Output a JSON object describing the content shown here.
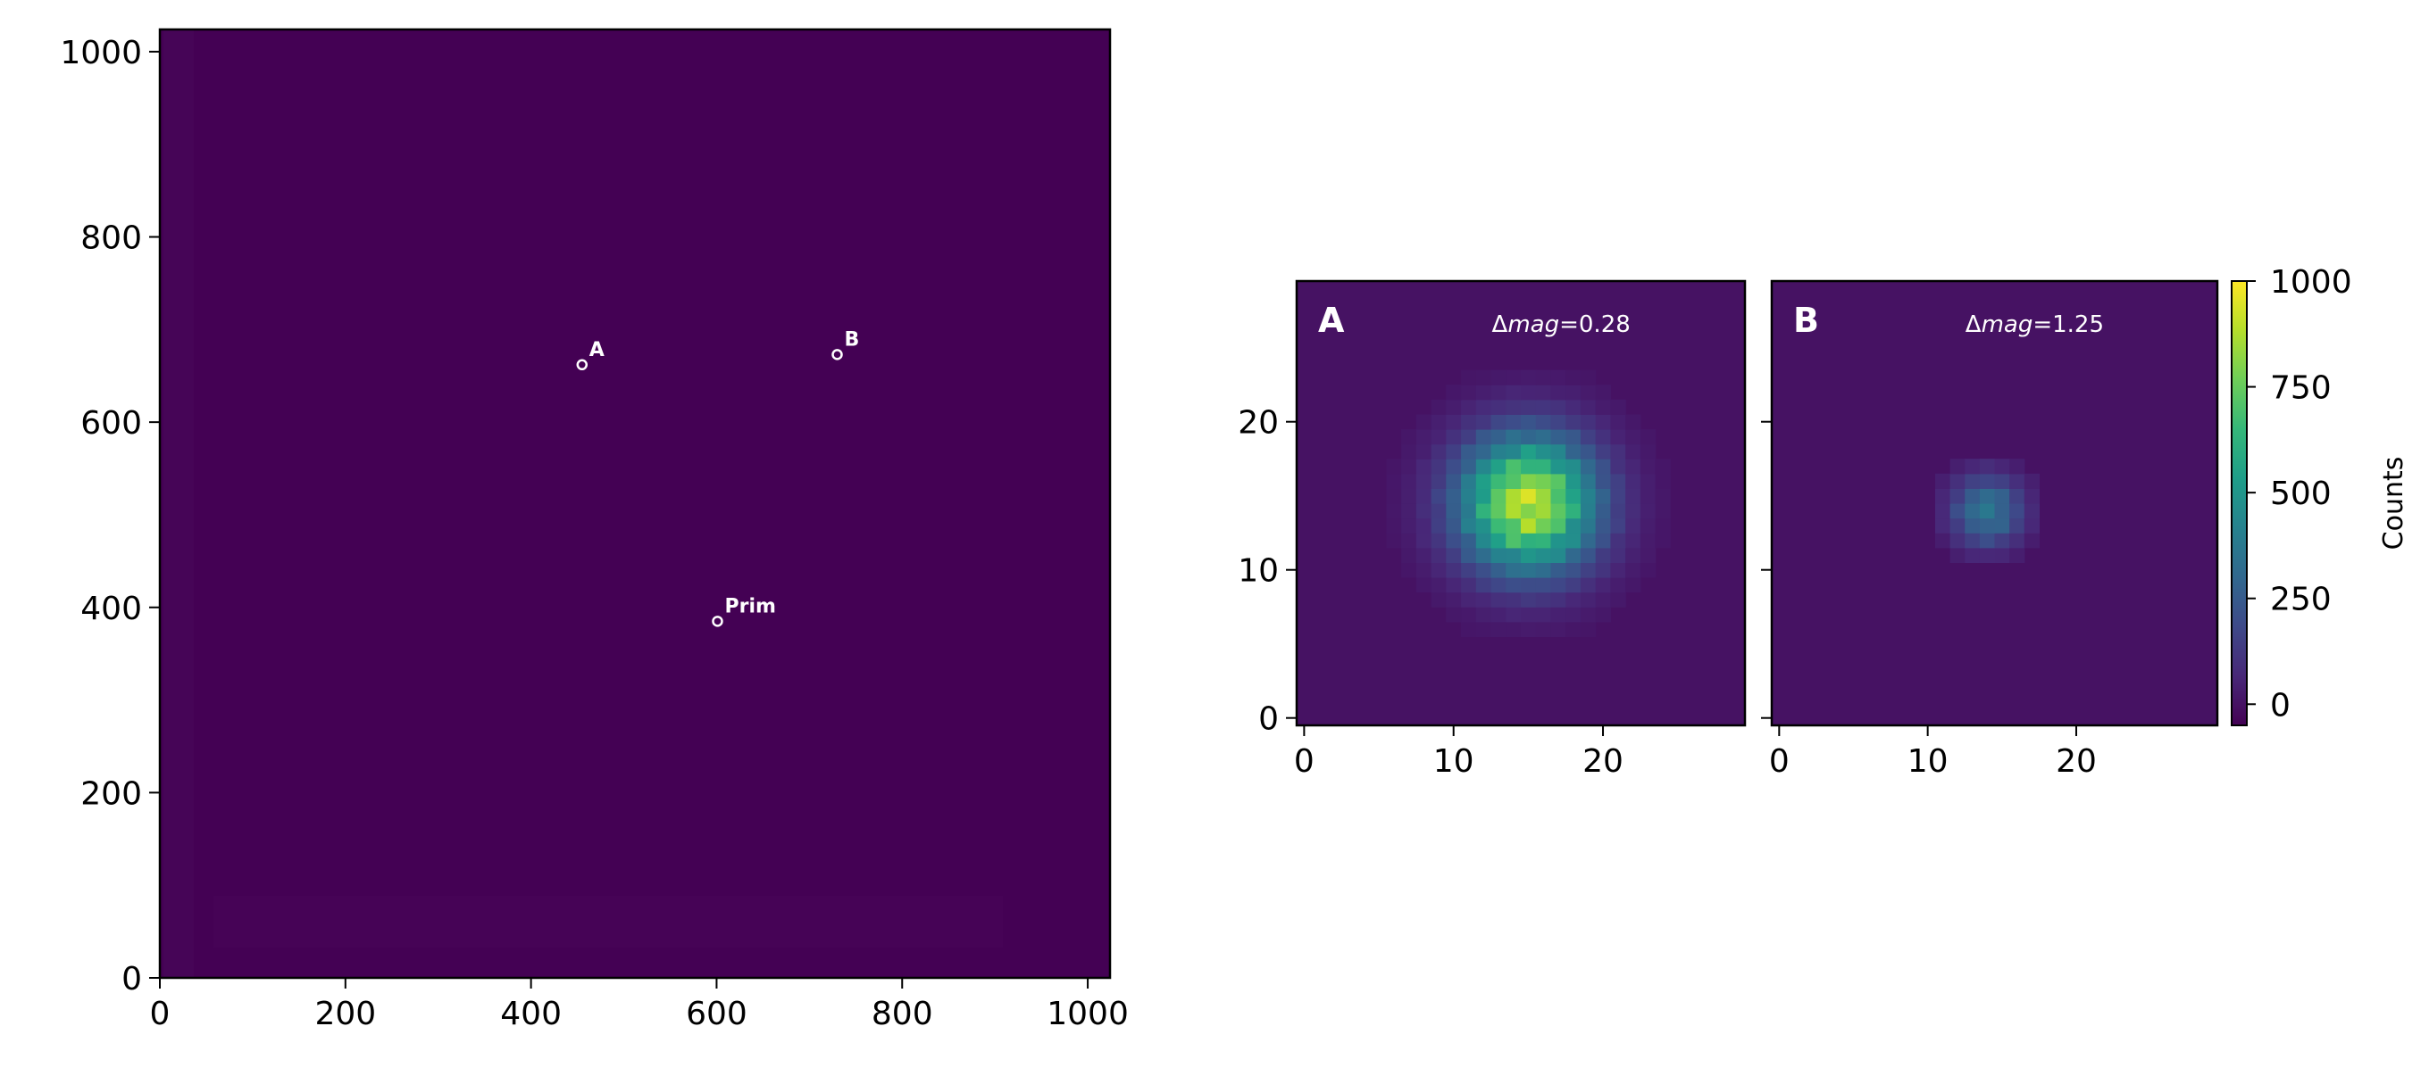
{
  "chart_data": [
    {
      "type": "heatmap",
      "id": "field",
      "title": "",
      "xlabel": "",
      "ylabel": "",
      "xlim": [
        0,
        1024
      ],
      "ylim": [
        0,
        1024
      ],
      "xticks": [
        0,
        200,
        400,
        600,
        800,
        1000
      ],
      "yticks": [
        0,
        200,
        400,
        600,
        800,
        1000
      ],
      "xtick_labels": [
        "0",
        "200",
        "400",
        "600",
        "800",
        "1000"
      ],
      "ytick_labels": [
        "0",
        "200",
        "400",
        "600",
        "800",
        "1000"
      ],
      "colormap": "viridis",
      "background_color": "#440154",
      "markers": [
        {
          "label": "A",
          "x": 455,
          "y": 662
        },
        {
          "label": "B",
          "x": 730,
          "y": 673
        },
        {
          "label": "Prim",
          "x": 601,
          "y": 385
        }
      ],
      "grid": false
    },
    {
      "type": "heatmap",
      "id": "cutout-A",
      "panel_label": "A",
      "annotation": {
        "delta_symbol": "Δ",
        "italic": "mag",
        "value_text": "=0.28"
      },
      "xlim": [
        -0.5,
        29.5
      ],
      "ylim": [
        -0.5,
        29.5
      ],
      "xticks": [
        0,
        10,
        20
      ],
      "yticks": [
        0,
        10,
        20
      ],
      "xtick_labels": [
        "0",
        "10",
        "20"
      ],
      "ytick_labels": [
        "0",
        "10",
        "20"
      ],
      "source": {
        "cx": 15,
        "cy": 14.5,
        "peak": 900,
        "sigma": 3.2,
        "threshold": 12
      },
      "colormap": "viridis",
      "grid": false
    },
    {
      "type": "heatmap",
      "id": "cutout-B",
      "panel_label": "B",
      "annotation": {
        "delta_symbol": "Δ",
        "italic": "mag",
        "value_text": "=1.25"
      },
      "xlim": [
        -0.5,
        29.5
      ],
      "ylim": [
        -0.5,
        29.5
      ],
      "xticks": [
        0,
        10,
        20
      ],
      "yticks": [
        0,
        10,
        20
      ],
      "xtick_labels": [
        "0",
        "10",
        "20"
      ],
      "ytick_labels": [],
      "source": {
        "cx": 14,
        "cy": 14,
        "peak": 360,
        "sigma": 1.7,
        "threshold": 30
      },
      "colormap": "viridis",
      "grid": false
    }
  ],
  "colorbar": {
    "label": "Counts",
    "vmin": -50,
    "vmax": 1000,
    "ticks": [
      0,
      250,
      500,
      750,
      1000
    ],
    "tick_labels": [
      "0",
      "250",
      "500",
      "750",
      "1000"
    ],
    "colormap": "viridis"
  },
  "colors": {
    "viridis_stops": [
      "#440154",
      "#482878",
      "#3e4a89",
      "#31688e",
      "#26828e",
      "#1f9e89",
      "#35b779",
      "#6ece58",
      "#b5de2b",
      "#fde725"
    ],
    "marker": "#ffffff",
    "axis": "#000000"
  }
}
